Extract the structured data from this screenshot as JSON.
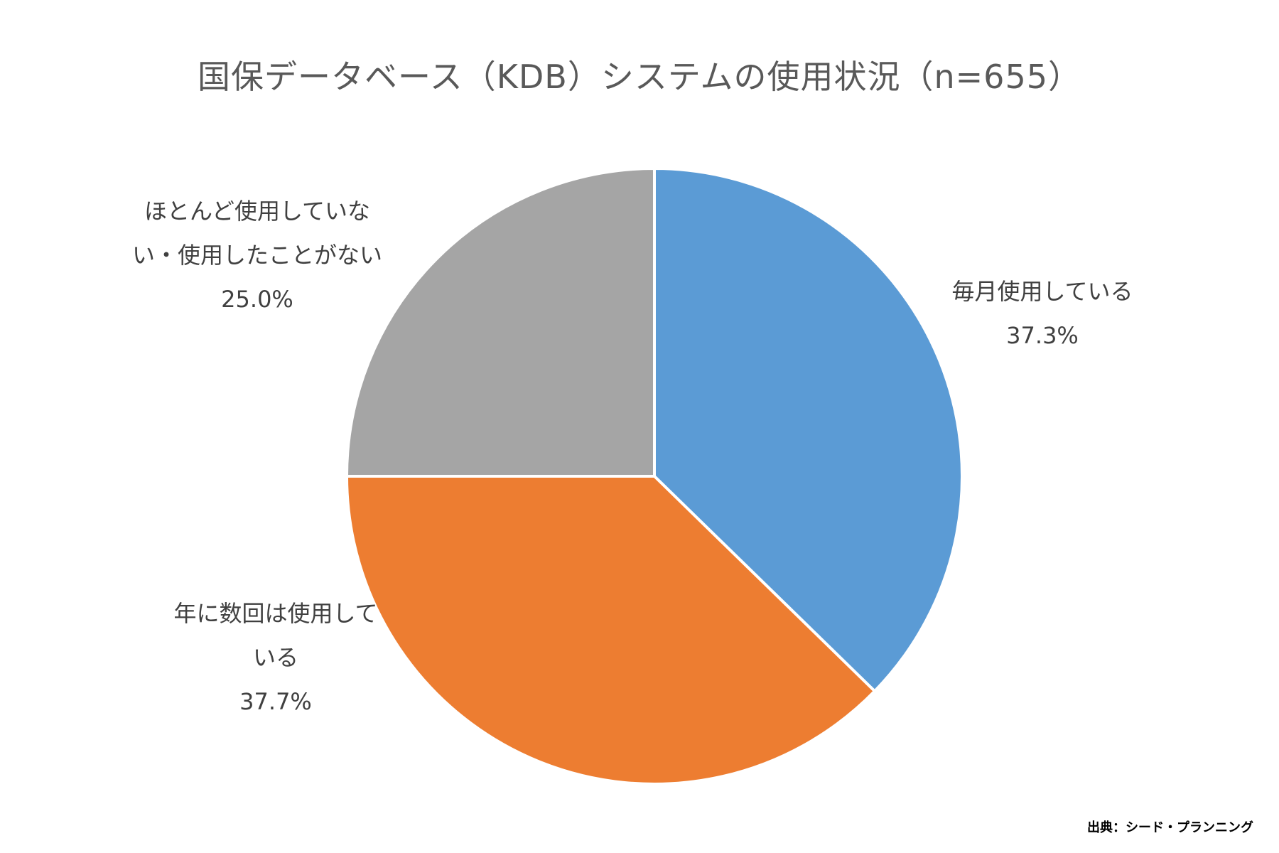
{
  "chart_data": {
    "type": "pie",
    "title": "国保データベース（KDB）システムの使用状況（n=655）",
    "slices": [
      {
        "name": "毎月使用している",
        "label_lines": [
          "毎月使用している"
        ],
        "value": 37.3,
        "value_label": "37.3%",
        "color": "#5B9BD5"
      },
      {
        "name": "年に数回は使用している",
        "label_lines": [
          "年に数回は使用して",
          "いる"
        ],
        "value": 37.7,
        "value_label": "37.7%",
        "color": "#ED7D31"
      },
      {
        "name": "ほとんど使用していない・使用したことがない",
        "label_lines": [
          "ほとんど使用していな",
          "い・使用したことがない"
        ],
        "value": 25.0,
        "value_label": "25.0%",
        "color": "#A5A5A5"
      }
    ],
    "start_angle": "12 o'clock",
    "direction": "clockwise",
    "legend": "none"
  },
  "source_note": "出典：シード・プランニング"
}
